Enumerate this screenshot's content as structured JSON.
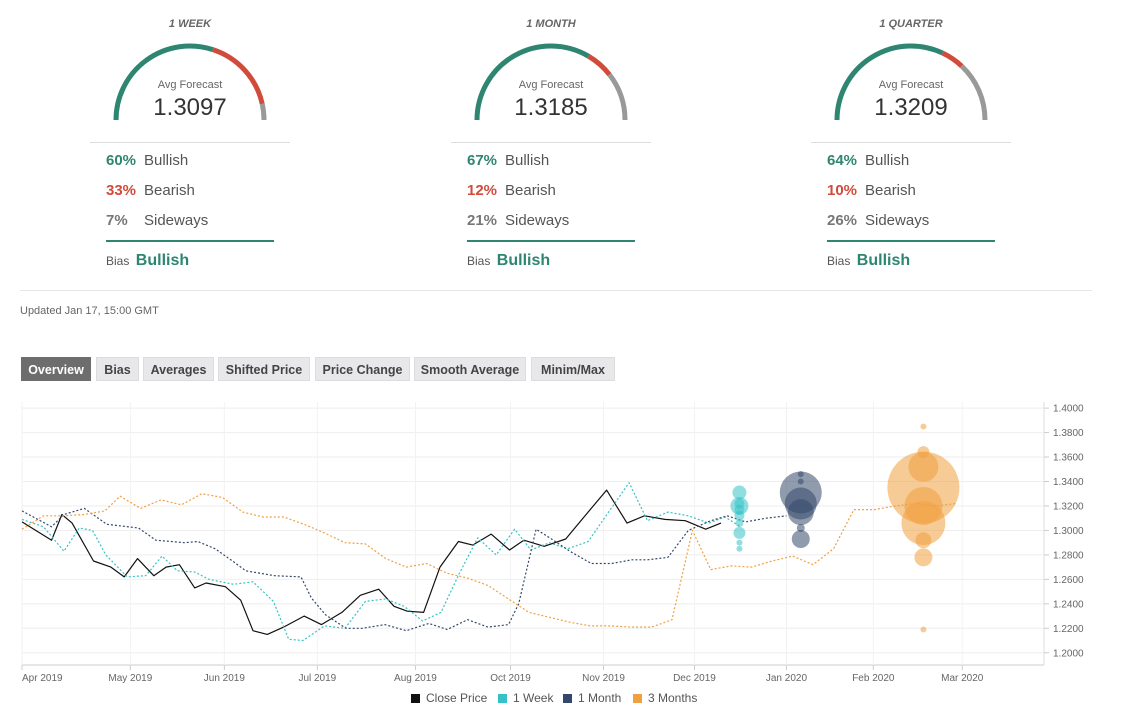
{
  "forecasts": [
    {
      "title": "1 WEEK",
      "avg_label": "Avg Forecast",
      "avg_value": "1.3097",
      "bullish_pct": "60%",
      "bullish_label": "Bullish",
      "bearish_pct": "33%",
      "bearish_label": "Bearish",
      "sideways_pct": "7%",
      "sideways_label": "Sideways",
      "bias_label": "Bias",
      "bias_value": "Bullish",
      "gauge": {
        "bullish": 0.6,
        "bearish": 0.33,
        "sideways": 0.07
      }
    },
    {
      "title": "1 MONTH",
      "avg_label": "Avg Forecast",
      "avg_value": "1.3185",
      "bullish_pct": "67%",
      "bullish_label": "Bullish",
      "bearish_pct": "12%",
      "bearish_label": "Bearish",
      "sideways_pct": "21%",
      "sideways_label": "Sideways",
      "bias_label": "Bias",
      "bias_value": "Bullish",
      "gauge": {
        "bullish": 0.67,
        "bearish": 0.12,
        "sideways": 0.21
      }
    },
    {
      "title": "1 QUARTER",
      "avg_label": "Avg Forecast",
      "avg_value": "1.3209",
      "bullish_pct": "64%",
      "bullish_label": "Bullish",
      "bearish_pct": "10%",
      "bearish_label": "Bearish",
      "sideways_pct": "26%",
      "sideways_label": "Sideways",
      "bias_label": "Bias",
      "bias_value": "Bullish",
      "gauge": {
        "bullish": 0.64,
        "bearish": 0.1,
        "sideways": 0.26
      }
    }
  ],
  "updated": "Updated Jan 17, 15:00 GMT",
  "tabs": [
    "Overview",
    "Bias",
    "Averages",
    "Shifted Price",
    "Price Change",
    "Smooth Average",
    "Minim/Max"
  ],
  "active_tab": "Overview",
  "colors": {
    "bullish": "#2e8571",
    "bearish": "#d14b3b",
    "sideways": "#999999",
    "close": "#111111",
    "week": "#35c2c6",
    "month": "#34486b",
    "quarter": "#f0a040"
  },
  "chart_data": {
    "type": "line",
    "y_ticks": [
      "1.4000",
      "1.3800",
      "1.3600",
      "1.3400",
      "1.3200",
      "1.3000",
      "1.2800",
      "1.2600",
      "1.2400",
      "1.2200",
      "1.2000"
    ],
    "ylim": [
      1.19,
      1.405
    ],
    "x_ticks": [
      "Apr 2019",
      "May 2019",
      "Jun 2019",
      "Jul 2019",
      "Aug 2019",
      "Oct 2019",
      "Nov 2019",
      "Dec 2019",
      "Jan 2020",
      "Feb 2020",
      "Mar 2020"
    ],
    "legend_position": "bottom",
    "series": [
      {
        "name": "Close Price",
        "color": "#111111",
        "dash": false,
        "points": [
          [
            0.0,
            1.307
          ],
          [
            2.9,
            1.292
          ],
          [
            3.9,
            1.313
          ],
          [
            4.9,
            1.306
          ],
          [
            7.0,
            1.275
          ],
          [
            8.7,
            1.27
          ],
          [
            10.0,
            1.262
          ],
          [
            11.3,
            1.277
          ],
          [
            12.9,
            1.263
          ],
          [
            14.1,
            1.27
          ],
          [
            15.4,
            1.272
          ],
          [
            16.9,
            1.253
          ],
          [
            18.0,
            1.257
          ],
          [
            19.9,
            1.254
          ],
          [
            21.4,
            1.243
          ],
          [
            22.6,
            1.218
          ],
          [
            24.0,
            1.215
          ],
          [
            25.6,
            1.221
          ],
          [
            27.6,
            1.23
          ],
          [
            29.3,
            1.223
          ],
          [
            31.3,
            1.233
          ],
          [
            33.1,
            1.247
          ],
          [
            34.9,
            1.252
          ],
          [
            36.4,
            1.238
          ],
          [
            37.7,
            1.234
          ],
          [
            39.3,
            1.233
          ],
          [
            40.9,
            1.27
          ],
          [
            42.7,
            1.291
          ],
          [
            44.1,
            1.288
          ],
          [
            45.9,
            1.297
          ],
          [
            47.7,
            1.284
          ],
          [
            49.1,
            1.292
          ],
          [
            51.1,
            1.287
          ],
          [
            53.2,
            1.293
          ],
          [
            55.2,
            1.313
          ],
          [
            57.2,
            1.333
          ],
          [
            59.2,
            1.306
          ],
          [
            60.9,
            1.312
          ],
          [
            62.9,
            1.309
          ],
          [
            64.9,
            1.308
          ],
          [
            66.9,
            1.301
          ],
          [
            68.4,
            1.306
          ]
        ]
      },
      {
        "name": "1 Week",
        "color": "#35c2c6",
        "dash": true,
        "points": [
          [
            0.0,
            1.309
          ],
          [
            2.1,
            1.303
          ],
          [
            4.1,
            1.283
          ],
          [
            5.6,
            1.302
          ],
          [
            6.9,
            1.3
          ],
          [
            8.2,
            1.28
          ],
          [
            10.3,
            1.262
          ],
          [
            12.1,
            1.263
          ],
          [
            13.7,
            1.279
          ],
          [
            15.2,
            1.267
          ],
          [
            16.9,
            1.266
          ],
          [
            18.3,
            1.26
          ],
          [
            20.7,
            1.256
          ],
          [
            22.6,
            1.258
          ],
          [
            24.6,
            1.242
          ],
          [
            26.1,
            1.211
          ],
          [
            27.5,
            1.21
          ],
          [
            29.6,
            1.222
          ],
          [
            31.6,
            1.22
          ],
          [
            33.6,
            1.242
          ],
          [
            35.6,
            1.244
          ],
          [
            37.4,
            1.238
          ],
          [
            39.2,
            1.226
          ],
          [
            41.0,
            1.233
          ],
          [
            42.8,
            1.265
          ],
          [
            44.6,
            1.294
          ],
          [
            46.4,
            1.28
          ],
          [
            48.2,
            1.301
          ],
          [
            49.8,
            1.284
          ],
          [
            51.6,
            1.29
          ],
          [
            53.4,
            1.285
          ],
          [
            55.4,
            1.291
          ],
          [
            57.4,
            1.315
          ],
          [
            59.4,
            1.339
          ],
          [
            61.2,
            1.308
          ],
          [
            63.2,
            1.315
          ],
          [
            65.2,
            1.312
          ],
          [
            67.2,
            1.306
          ],
          [
            68.8,
            1.311
          ],
          [
            70.3,
            1.303
          ]
        ]
      },
      {
        "name": "1 Month",
        "color": "#34486b",
        "dash": true,
        "points": [
          [
            0.0,
            1.316
          ],
          [
            2.9,
            1.303
          ],
          [
            4.1,
            1.313
          ],
          [
            6.1,
            1.318
          ],
          [
            8.3,
            1.305
          ],
          [
            11.4,
            1.302
          ],
          [
            13.1,
            1.292
          ],
          [
            15.9,
            1.29
          ],
          [
            17.2,
            1.291
          ],
          [
            18.9,
            1.285
          ],
          [
            20.6,
            1.275
          ],
          [
            21.9,
            1.267
          ],
          [
            24.7,
            1.263
          ],
          [
            27.3,
            1.262
          ],
          [
            28.3,
            1.245
          ],
          [
            29.7,
            1.231
          ],
          [
            31.7,
            1.22
          ],
          [
            33.3,
            1.22
          ],
          [
            35.5,
            1.223
          ],
          [
            37.6,
            1.218
          ],
          [
            39.8,
            1.224
          ],
          [
            41.6,
            1.219
          ],
          [
            43.6,
            1.227
          ],
          [
            45.6,
            1.221
          ],
          [
            47.6,
            1.223
          ],
          [
            48.6,
            1.24
          ],
          [
            50.3,
            1.301
          ],
          [
            52.0,
            1.292
          ],
          [
            53.6,
            1.283
          ],
          [
            55.7,
            1.273
          ],
          [
            57.7,
            1.273
          ],
          [
            59.7,
            1.276
          ],
          [
            61.2,
            1.276
          ],
          [
            63.2,
            1.278
          ],
          [
            65.2,
            1.3
          ],
          [
            67.4,
            1.308
          ],
          [
            69.0,
            1.312
          ],
          [
            70.8,
            1.307
          ],
          [
            72.8,
            1.31
          ],
          [
            74.8,
            1.312
          ]
        ]
      },
      {
        "name": "3 Months",
        "color": "#f0a040",
        "dash": true,
        "points": [
          [
            0.0,
            1.301
          ],
          [
            2.1,
            1.312
          ],
          [
            4.1,
            1.312
          ],
          [
            6.1,
            1.313
          ],
          [
            8.1,
            1.316
          ],
          [
            9.6,
            1.328
          ],
          [
            11.6,
            1.318
          ],
          [
            13.6,
            1.325
          ],
          [
            15.6,
            1.321
          ],
          [
            17.6,
            1.33
          ],
          [
            19.6,
            1.327
          ],
          [
            21.6,
            1.315
          ],
          [
            23.6,
            1.311
          ],
          [
            25.6,
            1.311
          ],
          [
            27.6,
            1.305
          ],
          [
            29.6,
            1.298
          ],
          [
            31.6,
            1.29
          ],
          [
            33.6,
            1.289
          ],
          [
            35.6,
            1.277
          ],
          [
            37.6,
            1.27
          ],
          [
            39.6,
            1.273
          ],
          [
            41.6,
            1.265
          ],
          [
            43.6,
            1.261
          ],
          [
            45.6,
            1.255
          ],
          [
            47.6,
            1.244
          ],
          [
            49.6,
            1.233
          ],
          [
            51.6,
            1.229
          ],
          [
            53.6,
            1.225
          ],
          [
            55.6,
            1.222
          ],
          [
            57.6,
            1.222
          ],
          [
            59.6,
            1.221
          ],
          [
            61.6,
            1.221
          ],
          [
            63.6,
            1.227
          ],
          [
            65.6,
            1.3
          ],
          [
            67.4,
            1.268
          ],
          [
            69.4,
            1.271
          ],
          [
            71.4,
            1.27
          ],
          [
            73.4,
            1.275
          ],
          [
            75.4,
            1.279
          ],
          [
            77.4,
            1.272
          ],
          [
            79.4,
            1.285
          ],
          [
            81.4,
            1.317
          ],
          [
            83.4,
            1.317
          ],
          [
            85.4,
            1.32
          ],
          [
            87.4,
            1.322
          ],
          [
            89.4,
            1.32
          ],
          [
            91.4,
            1.322
          ]
        ]
      }
    ],
    "forecast_bubbles": [
      {
        "series": "1 Week",
        "x": 70.2,
        "points": [
          [
            1.331,
            7
          ],
          [
            1.322,
            5
          ],
          [
            1.32,
            9
          ],
          [
            1.317,
            5
          ],
          [
            1.312,
            5
          ],
          [
            1.306,
            4
          ],
          [
            1.298,
            6
          ],
          [
            1.29,
            3
          ],
          [
            1.285,
            3
          ]
        ]
      },
      {
        "series": "1 Month",
        "x": 76.2,
        "points": [
          [
            1.346,
            3
          ],
          [
            1.34,
            3
          ],
          [
            1.331,
            21
          ],
          [
            1.322,
            16
          ],
          [
            1.315,
            13
          ],
          [
            1.302,
            4
          ],
          [
            1.293,
            9
          ]
        ]
      },
      {
        "series": "3 Months",
        "x": 88.2,
        "points": [
          [
            1.385,
            3
          ],
          [
            1.364,
            6
          ],
          [
            1.352,
            15
          ],
          [
            1.335,
            36
          ],
          [
            1.32,
            19
          ],
          [
            1.306,
            22
          ],
          [
            1.292,
            8
          ],
          [
            1.278,
            9
          ],
          [
            1.219,
            3
          ]
        ]
      }
    ]
  }
}
